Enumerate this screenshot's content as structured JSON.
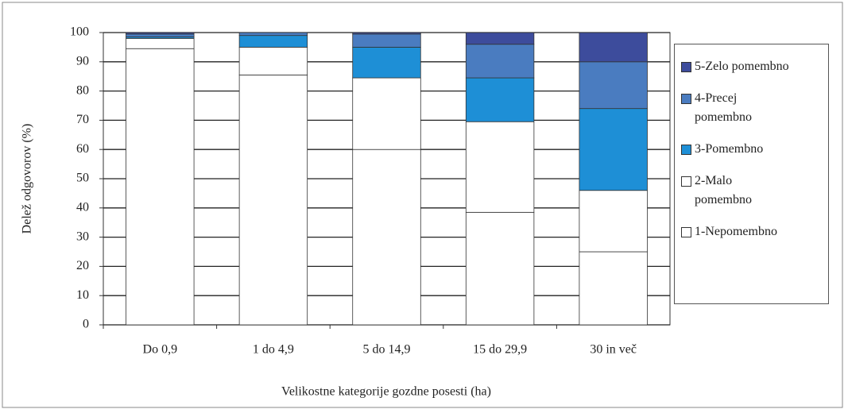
{
  "chart_data": {
    "type": "stacked_bar",
    "x_label": "Velikostne kategorije gozdne posesti (ha)",
    "y_label": "Delež odgovorov (%)",
    "categories": [
      "Do 0,9",
      "1 do 4,9",
      "5 do 14,9",
      "15 do 29,9",
      "30 in več"
    ],
    "series": [
      {
        "name": "1-Nepomembno",
        "color": "#ffffff",
        "values": [
          94.5,
          85.5,
          60,
          38.5,
          25
        ]
      },
      {
        "name": "2-Malo pomembno",
        "color": "#ffffff",
        "values": [
          3.5,
          9.5,
          24.5,
          31,
          21
        ]
      },
      {
        "name": "3-Pomembno",
        "color": "#1e8fd6",
        "values": [
          0.5,
          4,
          10.5,
          15,
          28
        ]
      },
      {
        "name": "4-Precej pomembno",
        "color": "#4a7cc0",
        "values": [
          1,
          1,
          4.5,
          11.5,
          16
        ]
      },
      {
        "name": "5-Zelo pomembno",
        "color": "#3d4c9c",
        "values": [
          0.5,
          0,
          0.5,
          4,
          10
        ]
      }
    ],
    "ylim": [
      0,
      100
    ],
    "yticks": [
      0,
      10,
      20,
      30,
      40,
      50,
      60,
      70,
      80,
      90,
      100
    ],
    "grid": true,
    "legend": "right"
  }
}
